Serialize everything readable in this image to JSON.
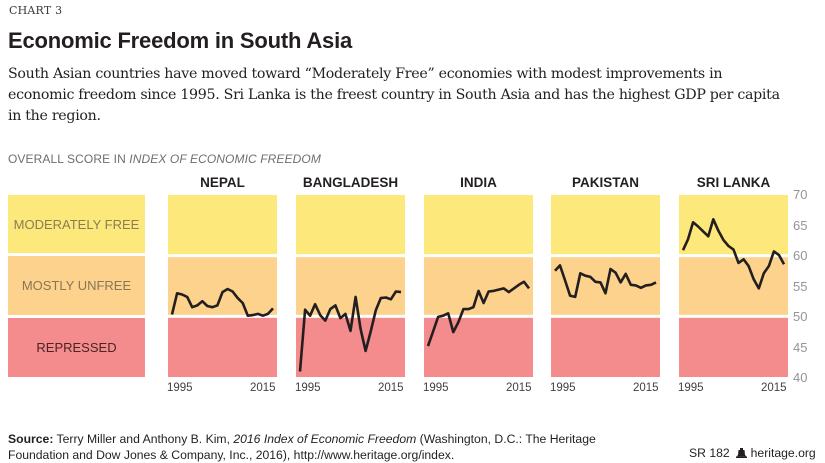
{
  "header": {
    "kicker": "CHART 3",
    "title": "Economic Freedom in South Asia",
    "subtitle": "South Asian countries have moved toward “Moderately Free” economies with modest improvements in economic freedom since 1995. Sri Lanka is the freest  country in South Asia and has the highest GDP per capita in the region."
  },
  "axis_title": {
    "prefix": "OVERALL SCORE IN ",
    "italic": "INDEX OF ECONOMIC FREEDOM"
  },
  "legend": [
    {
      "label": "MODERATELY FREE",
      "range": [
        60,
        70
      ],
      "color": "#fde97b"
    },
    {
      "label": "MOSTLY UNFREE",
      "range": [
        50,
        60
      ],
      "color": "#fcd28c"
    },
    {
      "label": "REPRESSED",
      "range": [
        40,
        50
      ],
      "color": "#f48b8d"
    }
  ],
  "chart_data": {
    "type": "line",
    "title": "Economic Freedom in South Asia",
    "ylabel": "Overall score in Index of Economic Freedom",
    "ylim": [
      40,
      70
    ],
    "yticks": [
      70,
      65,
      60,
      55,
      50,
      45,
      40
    ],
    "x": [
      1995,
      1996,
      1997,
      1998,
      1999,
      2000,
      2001,
      2002,
      2003,
      2004,
      2005,
      2006,
      2007,
      2008,
      2009,
      2010,
      2011,
      2012,
      2013,
      2014,
      2015
    ],
    "xtick_labels": [
      "1995",
      "2015"
    ],
    "line_color": "#231f20",
    "grid": false,
    "legend_placement": "left",
    "series": [
      {
        "name": "NEPAL",
        "values": [
          50.3,
          53.8,
          53.6,
          53.2,
          51.5,
          51.8,
          52.5,
          51.7,
          51.5,
          51.8,
          54.0,
          54.5,
          54.1,
          53.0,
          52.2,
          50.1,
          50.2,
          50.4,
          50.1,
          50.4,
          51.3
        ]
      },
      {
        "name": "BANGLADESH",
        "values": [
          40.9,
          51.1,
          50.1,
          52.0,
          50.2,
          49.3,
          51.2,
          51.8,
          49.7,
          50.4,
          47.6,
          53.2,
          47.9,
          44.3,
          47.5,
          51.0,
          53.0,
          53.1,
          52.8,
          54.1,
          54.0
        ]
      },
      {
        "name": "INDIA",
        "values": [
          45.1,
          47.5,
          49.9,
          50.1,
          50.5,
          47.4,
          49.0,
          51.2,
          51.2,
          51.5,
          54.2,
          52.2,
          54.1,
          54.2,
          54.4,
          54.6,
          54.0,
          54.6,
          55.2,
          55.7,
          54.6
        ]
      },
      {
        "name": "PAKISTAN",
        "values": [
          57.5,
          58.4,
          55.9,
          53.4,
          53.2,
          57.1,
          56.7,
          56.5,
          55.7,
          55.6,
          53.8,
          57.8,
          57.2,
          55.6,
          57.0,
          55.2,
          55.1,
          54.7,
          55.1,
          55.2,
          55.6
        ]
      },
      {
        "name": "SRI LANKA",
        "values": [
          60.9,
          62.7,
          65.5,
          64.8,
          64.0,
          63.2,
          66.0,
          64.1,
          62.6,
          61.6,
          61.0,
          58.8,
          59.4,
          58.3,
          56.1,
          54.6,
          57.1,
          58.3,
          60.7,
          60.1,
          58.6
        ]
      }
    ]
  },
  "panels": [
    {
      "title": "NEPAL"
    },
    {
      "title": "BANGLADESH"
    },
    {
      "title": "INDIA"
    },
    {
      "title": "PAKISTAN"
    },
    {
      "title": "SRI LANKA"
    }
  ],
  "x_labels": {
    "start": "1995",
    "end": "2015"
  },
  "y_labels": [
    "70",
    "65",
    "60",
    "55",
    "50",
    "45",
    "40"
  ],
  "footer": {
    "source_label": "Source:",
    "source_text_1": " Terry Miller and Anthony B. Kim, ",
    "source_italic": "2016 Index of Economic Freedom",
    "source_text_2": " (Washington, D.C.: The Heritage Foundation and Dow Jones & Company, Inc., 2016), http://www.heritage.org/index.",
    "report_id": "SR 182",
    "site": "heritage.org"
  }
}
